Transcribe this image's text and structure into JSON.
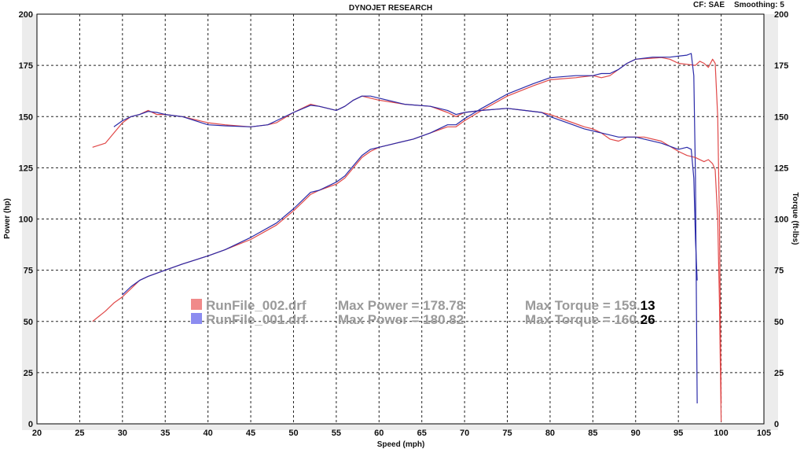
{
  "header": {
    "title": "DYNOJET RESEARCH",
    "correction": "CF: SAE",
    "smoothing": "Smoothing: 5"
  },
  "colors": {
    "run_002": "#e04848",
    "run_001": "#2a2aa8",
    "swatch_002": "#f08a8a",
    "swatch_001": "#8c8cf0",
    "frame": "#ececec"
  },
  "legend": [
    {
      "file": "RunFile_002.drf",
      "power_text": "Max Power = 178.78",
      "torque_prefix": "Max Torque = 159.",
      "torque_suffix": "13"
    },
    {
      "file": "RunFile_001.drf",
      "power_text": "Max Power = 180.82",
      "torque_prefix": "Max Torque = 160.",
      "torque_suffix": "26"
    }
  ],
  "chart_data": {
    "type": "line",
    "title": "DYNOJET RESEARCH",
    "xlabel": "Speed (mph)",
    "ylabel_left": "Power (hp)",
    "ylabel_right": "Torque (ft-lbs)",
    "xlim": [
      20,
      105
    ],
    "ylim": [
      0,
      200
    ],
    "x_ticks": [
      20,
      25,
      30,
      35,
      40,
      45,
      50,
      55,
      60,
      65,
      70,
      75,
      80,
      85,
      90,
      95,
      100,
      105
    ],
    "y_ticks": [
      0,
      25,
      50,
      75,
      100,
      125,
      150,
      175,
      200
    ],
    "grid": true,
    "series": [
      {
        "name": "RunFile_002.drf",
        "measure": "power",
        "points": [
          [
            26.5,
            50
          ],
          [
            28,
            55
          ],
          [
            29,
            59
          ],
          [
            30,
            62
          ],
          [
            31,
            66
          ],
          [
            32,
            70
          ],
          [
            33,
            72
          ],
          [
            35,
            75
          ],
          [
            37,
            78
          ],
          [
            40,
            82
          ],
          [
            42,
            85
          ],
          [
            45,
            90
          ],
          [
            48,
            97
          ],
          [
            50,
            104
          ],
          [
            51,
            108
          ],
          [
            52,
            112
          ],
          [
            53,
            114
          ],
          [
            55,
            117
          ],
          [
            56,
            120
          ],
          [
            57,
            125
          ],
          [
            58,
            130
          ],
          [
            59,
            133
          ],
          [
            60,
            135
          ],
          [
            62,
            137
          ],
          [
            64,
            139
          ],
          [
            66,
            142
          ],
          [
            68,
            145
          ],
          [
            69,
            145
          ],
          [
            70,
            148
          ],
          [
            72,
            153
          ],
          [
            75,
            160
          ],
          [
            78,
            165
          ],
          [
            80,
            168
          ],
          [
            83,
            169
          ],
          [
            85,
            170
          ],
          [
            86,
            169
          ],
          [
            87,
            170
          ],
          [
            88,
            173
          ],
          [
            89,
            176
          ],
          [
            90,
            178
          ],
          [
            92,
            178.5
          ],
          [
            93,
            178.8
          ],
          [
            94,
            178
          ],
          [
            95,
            176
          ],
          [
            96,
            175.5
          ],
          [
            97,
            175
          ],
          [
            97.5,
            177
          ],
          [
            98,
            176
          ],
          [
            98.5,
            174
          ],
          [
            99,
            178
          ],
          [
            99.3,
            176
          ],
          [
            99.6,
            150
          ],
          [
            99.8,
            100
          ],
          [
            100,
            10
          ]
        ]
      },
      {
        "name": "RunFile_001.drf",
        "measure": "power",
        "points": [
          [
            30,
            63
          ],
          [
            31,
            67
          ],
          [
            32,
            70
          ],
          [
            33,
            72
          ],
          [
            35,
            75
          ],
          [
            37,
            78
          ],
          [
            40,
            82
          ],
          [
            42,
            85
          ],
          [
            45,
            91
          ],
          [
            48,
            98
          ],
          [
            50,
            105
          ],
          [
            52,
            113
          ],
          [
            53,
            114
          ],
          [
            55,
            118
          ],
          [
            56,
            121
          ],
          [
            57,
            126
          ],
          [
            58,
            131
          ],
          [
            59,
            134
          ],
          [
            60,
            135
          ],
          [
            62,
            137
          ],
          [
            64,
            139
          ],
          [
            66,
            142
          ],
          [
            68,
            146
          ],
          [
            69,
            146
          ],
          [
            70,
            149
          ],
          [
            72,
            154
          ],
          [
            75,
            161
          ],
          [
            78,
            166
          ],
          [
            80,
            169
          ],
          [
            83,
            170
          ],
          [
            85,
            170
          ],
          [
            86,
            171
          ],
          [
            87,
            171
          ],
          [
            88,
            173
          ],
          [
            89,
            176
          ],
          [
            90,
            178
          ],
          [
            92,
            179
          ],
          [
            94,
            179
          ],
          [
            95,
            179.5
          ],
          [
            96,
            180
          ],
          [
            96.5,
            180.8
          ],
          [
            96.8,
            170
          ],
          [
            97.0,
            120
          ],
          [
            97.2,
            10
          ]
        ]
      },
      {
        "name": "RunFile_002.drf",
        "measure": "torque",
        "points": [
          [
            26.5,
            135
          ],
          [
            28,
            137
          ],
          [
            29,
            142
          ],
          [
            30,
            147
          ],
          [
            31,
            150
          ],
          [
            32,
            151
          ],
          [
            33,
            153
          ],
          [
            34,
            151
          ],
          [
            35,
            151
          ],
          [
            37,
            150
          ],
          [
            40,
            147
          ],
          [
            42,
            146
          ],
          [
            45,
            145
          ],
          [
            47,
            146
          ],
          [
            48,
            147
          ],
          [
            50,
            152
          ],
          [
            52,
            156
          ],
          [
            53,
            155
          ],
          [
            55,
            153
          ],
          [
            56,
            155
          ],
          [
            57,
            158
          ],
          [
            58,
            160
          ],
          [
            59,
            159
          ],
          [
            60,
            158
          ],
          [
            63,
            156
          ],
          [
            66,
            155
          ],
          [
            68,
            152
          ],
          [
            69,
            150
          ],
          [
            70,
            152
          ],
          [
            72,
            153
          ],
          [
            75,
            154
          ],
          [
            77,
            153
          ],
          [
            79,
            152
          ],
          [
            80,
            151
          ],
          [
            82,
            148
          ],
          [
            84,
            145
          ],
          [
            85,
            144
          ],
          [
            86,
            142
          ],
          [
            87,
            139
          ],
          [
            88,
            138
          ],
          [
            89,
            140
          ],
          [
            90,
            140
          ],
          [
            91,
            140
          ],
          [
            93,
            138
          ],
          [
            95,
            133
          ],
          [
            96,
            131
          ],
          [
            97,
            130
          ],
          [
            98,
            128
          ],
          [
            98.5,
            129
          ],
          [
            99,
            127
          ],
          [
            99.3,
            124
          ],
          [
            99.6,
            100
          ],
          [
            99.8,
            60
          ],
          [
            100,
            1
          ]
        ]
      },
      {
        "name": "RunFile_001.drf",
        "measure": "torque",
        "points": [
          [
            29,
            145
          ],
          [
            30,
            148
          ],
          [
            31,
            150
          ],
          [
            32,
            151
          ],
          [
            33,
            152.5
          ],
          [
            34,
            152
          ],
          [
            35,
            151
          ],
          [
            37,
            150
          ],
          [
            40,
            146
          ],
          [
            42,
            145.5
          ],
          [
            45,
            145
          ],
          [
            47,
            146
          ],
          [
            48,
            148
          ],
          [
            50,
            152
          ],
          [
            52,
            155.5
          ],
          [
            53,
            155
          ],
          [
            55,
            153
          ],
          [
            56,
            155
          ],
          [
            57,
            158
          ],
          [
            58,
            160
          ],
          [
            59,
            160
          ],
          [
            60,
            159
          ],
          [
            63,
            156
          ],
          [
            66,
            155
          ],
          [
            68,
            153
          ],
          [
            69,
            151
          ],
          [
            70,
            152
          ],
          [
            72,
            153
          ],
          [
            75,
            154
          ],
          [
            77,
            153
          ],
          [
            79,
            152
          ],
          [
            80,
            150
          ],
          [
            82,
            147
          ],
          [
            84,
            144
          ],
          [
            85,
            143
          ],
          [
            86,
            142
          ],
          [
            87,
            141
          ],
          [
            88,
            140
          ],
          [
            90,
            140
          ],
          [
            91,
            139
          ],
          [
            93,
            137
          ],
          [
            95,
            134
          ],
          [
            96,
            135
          ],
          [
            96.5,
            134
          ],
          [
            96.8,
            120
          ],
          [
            97.0,
            90
          ],
          [
            97.2,
            70
          ]
        ]
      }
    ]
  }
}
